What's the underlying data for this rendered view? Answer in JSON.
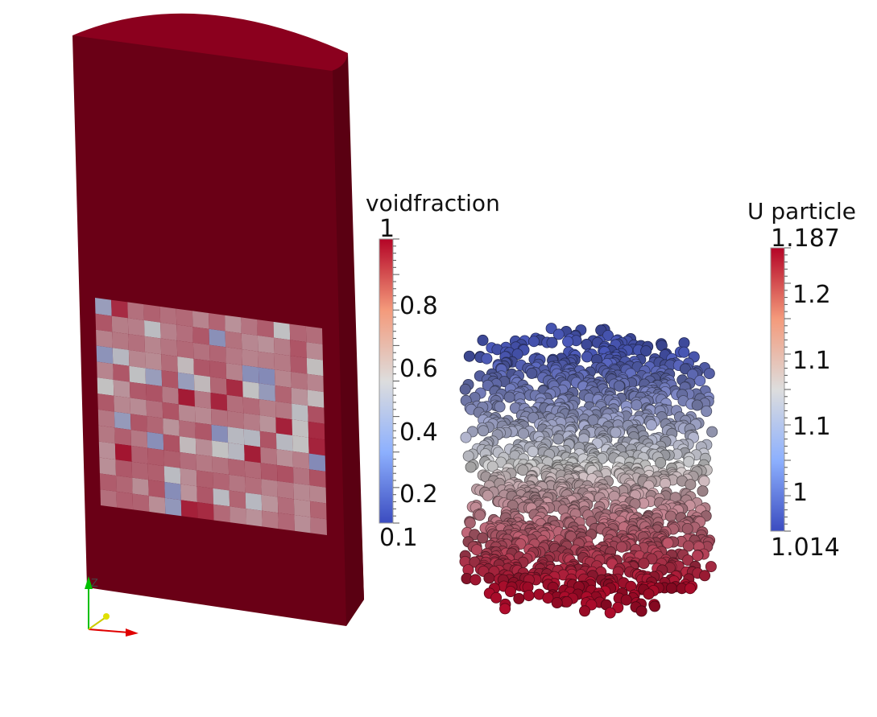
{
  "colorbars": {
    "voidfraction": {
      "title": "voidfraction",
      "max_label": "1",
      "min_label": "0.1",
      "tick_labels": [
        "0.8",
        "0.6",
        "0.4",
        "0.2"
      ]
    },
    "uparticle": {
      "title": "U particle",
      "max_label": "1.187",
      "min_label": "1.014",
      "tick_labels": [
        "1.2",
        "1.1",
        "1.1",
        "1"
      ]
    }
  },
  "colormap": {
    "low": "#3b4cc0",
    "mid": "#dddddd",
    "high": "#b40426",
    "bed_color": "#6a0016",
    "bed_top_color": "#8b001e"
  },
  "axes_triad": {
    "z_color": "#00c000",
    "x_color": "#e00000",
    "y_color": "#e0e000",
    "z_label": "Z"
  }
}
